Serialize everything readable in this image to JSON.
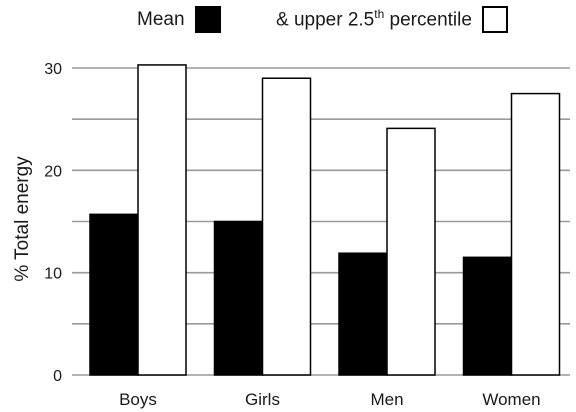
{
  "chart_data": {
    "type": "bar",
    "categories": [
      "Boys",
      "Girls",
      "Men",
      "Women"
    ],
    "series": [
      {
        "name": "Mean",
        "values": [
          15.7,
          15.0,
          11.9,
          11.5
        ],
        "color": "#000000"
      },
      {
        "name": "& upper 2.5th percentile",
        "values": [
          30.3,
          29.0,
          24.1,
          27.5
        ],
        "color": "#ffffff"
      }
    ],
    "legend": {
      "mean_label": "Mean",
      "upper_prefix": "& upper 2.5",
      "upper_sup": "th",
      "upper_suffix": " percentile"
    },
    "ylabel": "% Total energy",
    "ylim": [
      0,
      30
    ],
    "yticks": [
      "0",
      "10",
      "20",
      "30"
    ],
    "grid": true,
    "legend_placement": "top"
  }
}
